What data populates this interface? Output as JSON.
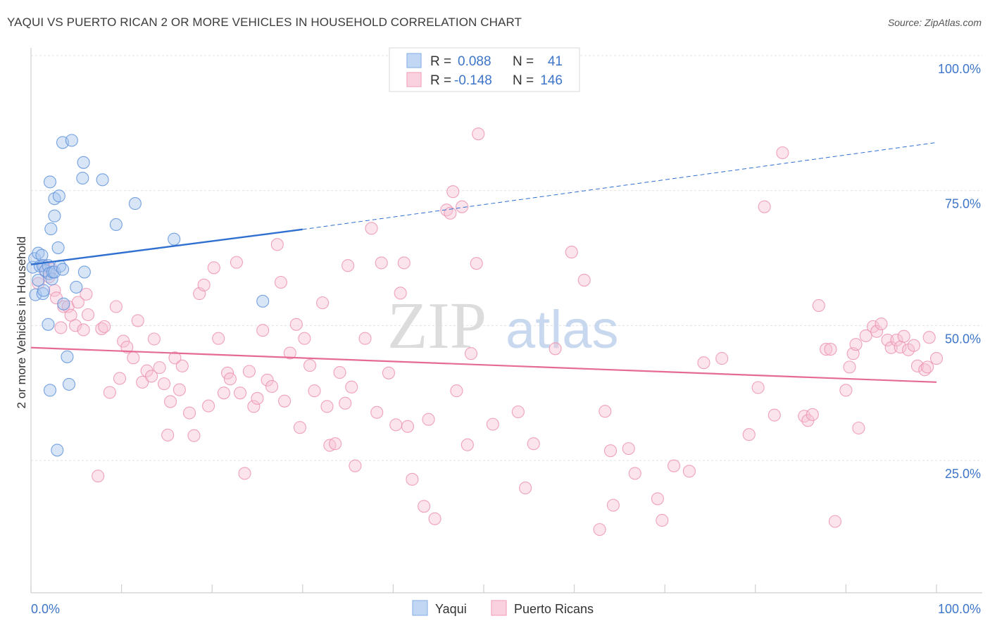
{
  "title": "YAQUI VS PUERTO RICAN 2 OR MORE VEHICLES IN HOUSEHOLD CORRELATION CHART",
  "source": "Source: ZipAtlas.com",
  "watermark": {
    "zip": "ZIP",
    "atlas": "atlas"
  },
  "legend": [
    {
      "r_label": "R =",
      "r_value": "0.088",
      "n_label": "N =",
      "n_value": "41",
      "color": "#8fb6ea"
    },
    {
      "r_label": "R =",
      "r_value": "-0.148",
      "n_label": "N =",
      "n_value": "146",
      "color": "#f2a7bf"
    }
  ],
  "bottom_legend": [
    "Yaqui",
    "Puerto Ricans"
  ],
  "chart_data": {
    "type": "scatter",
    "xlabel": "",
    "ylabel": "2 or more Vehicles in Household",
    "xlim": [
      0,
      100
    ],
    "ylim": [
      0,
      100
    ],
    "x_tick_labels": [
      "0.0%",
      "100.0%"
    ],
    "y_tick_labels": [
      "100.0%",
      "75.0%",
      "50.0%",
      "25.0%"
    ],
    "y_ticks": [
      100,
      75,
      50,
      25
    ],
    "grid": true,
    "series": [
      {
        "name": "Yaqui",
        "color": "#6c9de0",
        "points": [
          [
            0.2,
            60.8
          ],
          [
            0.4,
            62.4
          ],
          [
            0.5,
            55.7
          ],
          [
            0.8,
            58.4
          ],
          [
            0.8,
            63.4
          ],
          [
            1.0,
            61.0
          ],
          [
            1.2,
            63.0
          ],
          [
            1.3,
            55.9
          ],
          [
            1.3,
            61.1
          ],
          [
            1.4,
            56.5
          ],
          [
            1.6,
            60.2
          ],
          [
            1.9,
            61.1
          ],
          [
            1.9,
            50.2
          ],
          [
            2.0,
            59.6
          ],
          [
            2.1,
            76.6
          ],
          [
            2.1,
            38.0
          ],
          [
            2.2,
            67.9
          ],
          [
            2.3,
            58.6
          ],
          [
            2.4,
            59.9
          ],
          [
            2.6,
            59.9
          ],
          [
            2.6,
            70.3
          ],
          [
            2.6,
            73.5
          ],
          [
            2.9,
            26.9
          ],
          [
            3.0,
            64.4
          ],
          [
            3.1,
            74.0
          ],
          [
            3.2,
            61.0
          ],
          [
            3.5,
            60.4
          ],
          [
            3.5,
            83.9
          ],
          [
            3.6,
            54.0
          ],
          [
            4.0,
            44.2
          ],
          [
            4.2,
            39.1
          ],
          [
            4.5,
            84.3
          ],
          [
            5.0,
            57.1
          ],
          [
            5.7,
            77.3
          ],
          [
            5.8,
            80.2
          ],
          [
            5.9,
            59.9
          ],
          [
            7.9,
            77.0
          ],
          [
            9.4,
            68.7
          ],
          [
            11.5,
            72.6
          ],
          [
            15.8,
            66.0
          ],
          [
            25.6,
            54.5
          ]
        ],
        "trend": {
          "x1": 0,
          "y1": 61.3,
          "x2": 30,
          "y2": 67.8,
          "dash_to_x": 100,
          "dash_to_y": 83.9
        }
      },
      {
        "name": "Puerto Ricans",
        "color": "#f1a3bc",
        "points": [
          [
            0.8,
            57.8
          ],
          [
            1.4,
            61.1
          ],
          [
            1.6,
            60.0
          ],
          [
            2.0,
            59.0
          ],
          [
            2.3,
            60.4
          ],
          [
            2.6,
            56.5
          ],
          [
            2.8,
            55.1
          ],
          [
            3.3,
            49.6
          ],
          [
            3.6,
            53.5
          ],
          [
            4.1,
            53.5
          ],
          [
            4.4,
            51.9
          ],
          [
            4.9,
            50.0
          ],
          [
            5.2,
            54.3
          ],
          [
            5.8,
            49.2
          ],
          [
            6.1,
            55.8
          ],
          [
            6.3,
            52.0
          ],
          [
            7.4,
            22.1
          ],
          [
            7.8,
            49.4
          ],
          [
            8.1,
            49.8
          ],
          [
            8.7,
            37.6
          ],
          [
            9.4,
            53.5
          ],
          [
            9.8,
            40.2
          ],
          [
            10.2,
            47.1
          ],
          [
            10.6,
            46.0
          ],
          [
            11.3,
            44.0
          ],
          [
            11.8,
            50.9
          ],
          [
            12.3,
            39.5
          ],
          [
            12.8,
            41.6
          ],
          [
            13.3,
            40.6
          ],
          [
            13.6,
            47.5
          ],
          [
            14.2,
            42.2
          ],
          [
            14.7,
            39.2
          ],
          [
            15.1,
            29.7
          ],
          [
            15.4,
            35.9
          ],
          [
            15.9,
            44.0
          ],
          [
            16.4,
            38.1
          ],
          [
            16.7,
            42.5
          ],
          [
            17.5,
            33.8
          ],
          [
            18.0,
            29.6
          ],
          [
            18.6,
            55.9
          ],
          [
            19.1,
            57.5
          ],
          [
            19.6,
            35.1
          ],
          [
            20.2,
            60.7
          ],
          [
            20.7,
            47.6
          ],
          [
            21.3,
            37.5
          ],
          [
            21.7,
            41.2
          ],
          [
            22.0,
            40.1
          ],
          [
            22.7,
            61.7
          ],
          [
            23.1,
            37.5
          ],
          [
            23.6,
            22.6
          ],
          [
            24.1,
            41.5
          ],
          [
            24.6,
            35.0
          ],
          [
            25.0,
            36.5
          ],
          [
            25.6,
            49.1
          ],
          [
            26.1,
            39.9
          ],
          [
            26.6,
            38.7
          ],
          [
            27.2,
            65.0
          ],
          [
            27.6,
            58.0
          ],
          [
            28.0,
            36.0
          ],
          [
            28.6,
            44.9
          ],
          [
            29.3,
            50.2
          ],
          [
            29.7,
            31.1
          ],
          [
            30.2,
            47.6
          ],
          [
            30.8,
            42.6
          ],
          [
            31.3,
            37.9
          ],
          [
            32.2,
            54.2
          ],
          [
            32.7,
            35.0
          ],
          [
            33.0,
            27.8
          ],
          [
            33.6,
            28.1
          ],
          [
            34.1,
            41.3
          ],
          [
            34.7,
            35.6
          ],
          [
            35.0,
            61.1
          ],
          [
            35.4,
            38.6
          ],
          [
            35.8,
            24.0
          ],
          [
            36.9,
            47.6
          ],
          [
            37.6,
            68.0
          ],
          [
            38.2,
            33.9
          ],
          [
            38.7,
            61.6
          ],
          [
            39.5,
            41.2
          ],
          [
            40.3,
            31.6
          ],
          [
            40.8,
            56.0
          ],
          [
            41.2,
            61.6
          ],
          [
            41.6,
            31.3
          ],
          [
            42.1,
            21.5
          ],
          [
            43.4,
            16.5
          ],
          [
            43.9,
            32.6
          ],
          [
            44.6,
            14.2
          ],
          [
            45.9,
            71.4
          ],
          [
            46.3,
            70.8
          ],
          [
            46.6,
            74.8
          ],
          [
            47.0,
            37.9
          ],
          [
            47.6,
            72.0
          ],
          [
            48.2,
            27.9
          ],
          [
            48.6,
            44.8
          ],
          [
            49.2,
            61.5
          ],
          [
            49.4,
            85.5
          ],
          [
            51.0,
            31.7
          ],
          [
            53.8,
            34.0
          ],
          [
            54.6,
            19.9
          ],
          [
            55.5,
            28.1
          ],
          [
            57.9,
            45.7
          ],
          [
            59.7,
            63.6
          ],
          [
            61.1,
            58.4
          ],
          [
            62.8,
            12.2
          ],
          [
            63.4,
            34.1
          ],
          [
            64.0,
            26.8
          ],
          [
            64.3,
            16.7
          ],
          [
            66.0,
            27.2
          ],
          [
            66.7,
            22.6
          ],
          [
            69.2,
            17.9
          ],
          [
            69.7,
            13.9
          ],
          [
            71.0,
            24.0
          ],
          [
            72.7,
            23.0
          ],
          [
            74.3,
            43.1
          ],
          [
            76.3,
            43.9
          ],
          [
            79.3,
            29.8
          ],
          [
            80.3,
            38.5
          ],
          [
            81.0,
            72.0
          ],
          [
            82.1,
            33.4
          ],
          [
            83.0,
            82.0
          ],
          [
            85.4,
            33.2
          ],
          [
            85.8,
            32.4
          ],
          [
            86.3,
            33.5
          ],
          [
            87.0,
            53.7
          ],
          [
            87.8,
            45.6
          ],
          [
            88.3,
            45.6
          ],
          [
            88.8,
            13.7
          ],
          [
            90.0,
            38.0
          ],
          [
            90.4,
            42.3
          ],
          [
            90.8,
            44.8
          ],
          [
            91.1,
            46.5
          ],
          [
            91.4,
            31.0
          ],
          [
            92.2,
            48.1
          ],
          [
            93.0,
            49.8
          ],
          [
            93.4,
            48.9
          ],
          [
            93.9,
            50.3
          ],
          [
            94.6,
            47.3
          ],
          [
            95.0,
            45.9
          ],
          [
            95.6,
            47.3
          ],
          [
            96.0,
            46.0
          ],
          [
            96.4,
            48.0
          ],
          [
            96.9,
            45.5
          ],
          [
            97.5,
            46.3
          ],
          [
            97.9,
            42.5
          ],
          [
            98.7,
            41.8
          ],
          [
            99.0,
            42.3
          ],
          [
            99.2,
            47.8
          ],
          [
            100.0,
            43.9
          ]
        ],
        "trend": {
          "x1": 0,
          "y1": 45.9,
          "x2": 100,
          "y2": 39.5
        }
      }
    ]
  }
}
